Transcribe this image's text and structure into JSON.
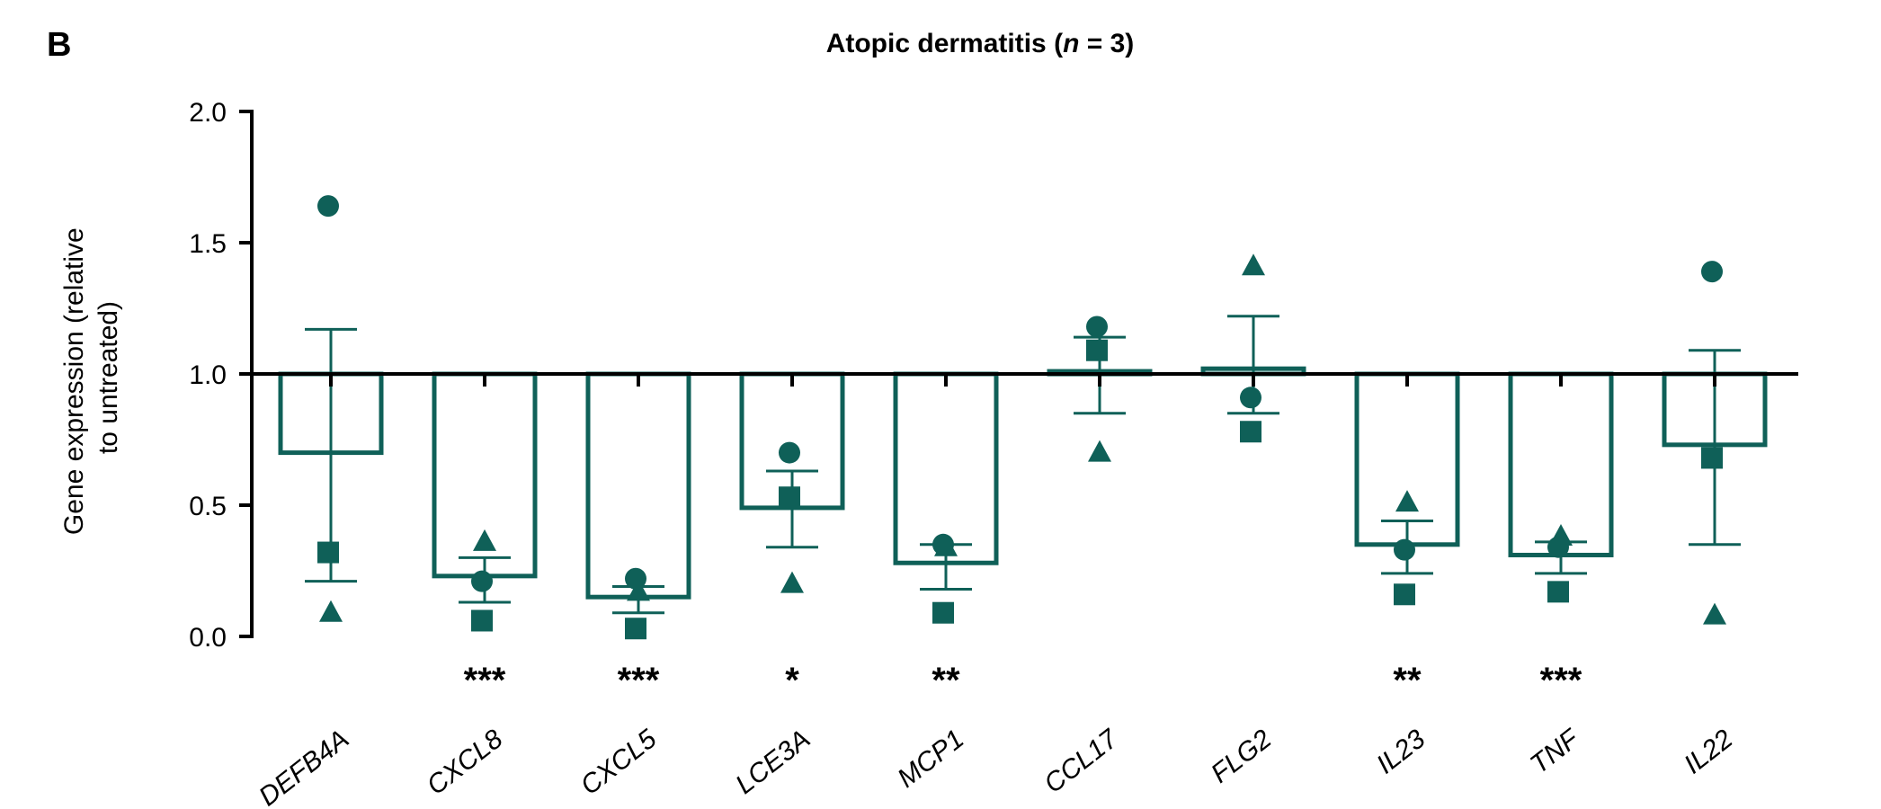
{
  "panel_label": "B",
  "chart_data": {
    "type": "bar",
    "title_main": "Atopic dermatitis (",
    "title_n": "n",
    "title_rest": " = 3)",
    "ylabel_line1": "Gene expression (relative",
    "ylabel_line2": "to untreated)",
    "xlabel": "",
    "ylim": [
      0,
      2
    ],
    "yticks": [
      0,
      0.5,
      1,
      1.5,
      2
    ],
    "ytick_labels": [
      "0.0",
      "0.5",
      "1.0",
      "1.5",
      "2.0"
    ],
    "baseline": 1.0,
    "color": "#0f6058",
    "categories": [
      "DEFB4A",
      "CXCL8",
      "CXCL5",
      "LCE3A",
      "MCP1",
      "CCL17",
      "FLG2",
      "IL23",
      "TNF",
      "IL22"
    ],
    "values": [
      0.7,
      0.23,
      0.15,
      0.49,
      0.28,
      1.01,
      1.02,
      0.35,
      0.31,
      0.73
    ],
    "error_upper": [
      1.17,
      0.3,
      0.19,
      0.63,
      0.35,
      1.14,
      1.22,
      0.44,
      0.36,
      1.09
    ],
    "error_lower": [
      0.21,
      0.13,
      0.09,
      0.34,
      0.18,
      0.85,
      0.85,
      0.24,
      0.24,
      0.35
    ],
    "significance": [
      "",
      "***",
      "***",
      "*",
      "**",
      "",
      "",
      "**",
      "***",
      ""
    ],
    "points": {
      "circle": [
        1.64,
        0.21,
        0.22,
        0.7,
        0.35,
        1.18,
        0.91,
        0.33,
        0.34,
        1.39
      ],
      "square": [
        0.32,
        0.06,
        0.03,
        0.53,
        0.09,
        1.09,
        0.78,
        0.16,
        0.17,
        0.68
      ],
      "triangle": [
        0.09,
        0.36,
        0.17,
        0.2,
        0.34,
        0.7,
        1.41,
        0.51,
        0.38,
        0.08
      ]
    }
  }
}
